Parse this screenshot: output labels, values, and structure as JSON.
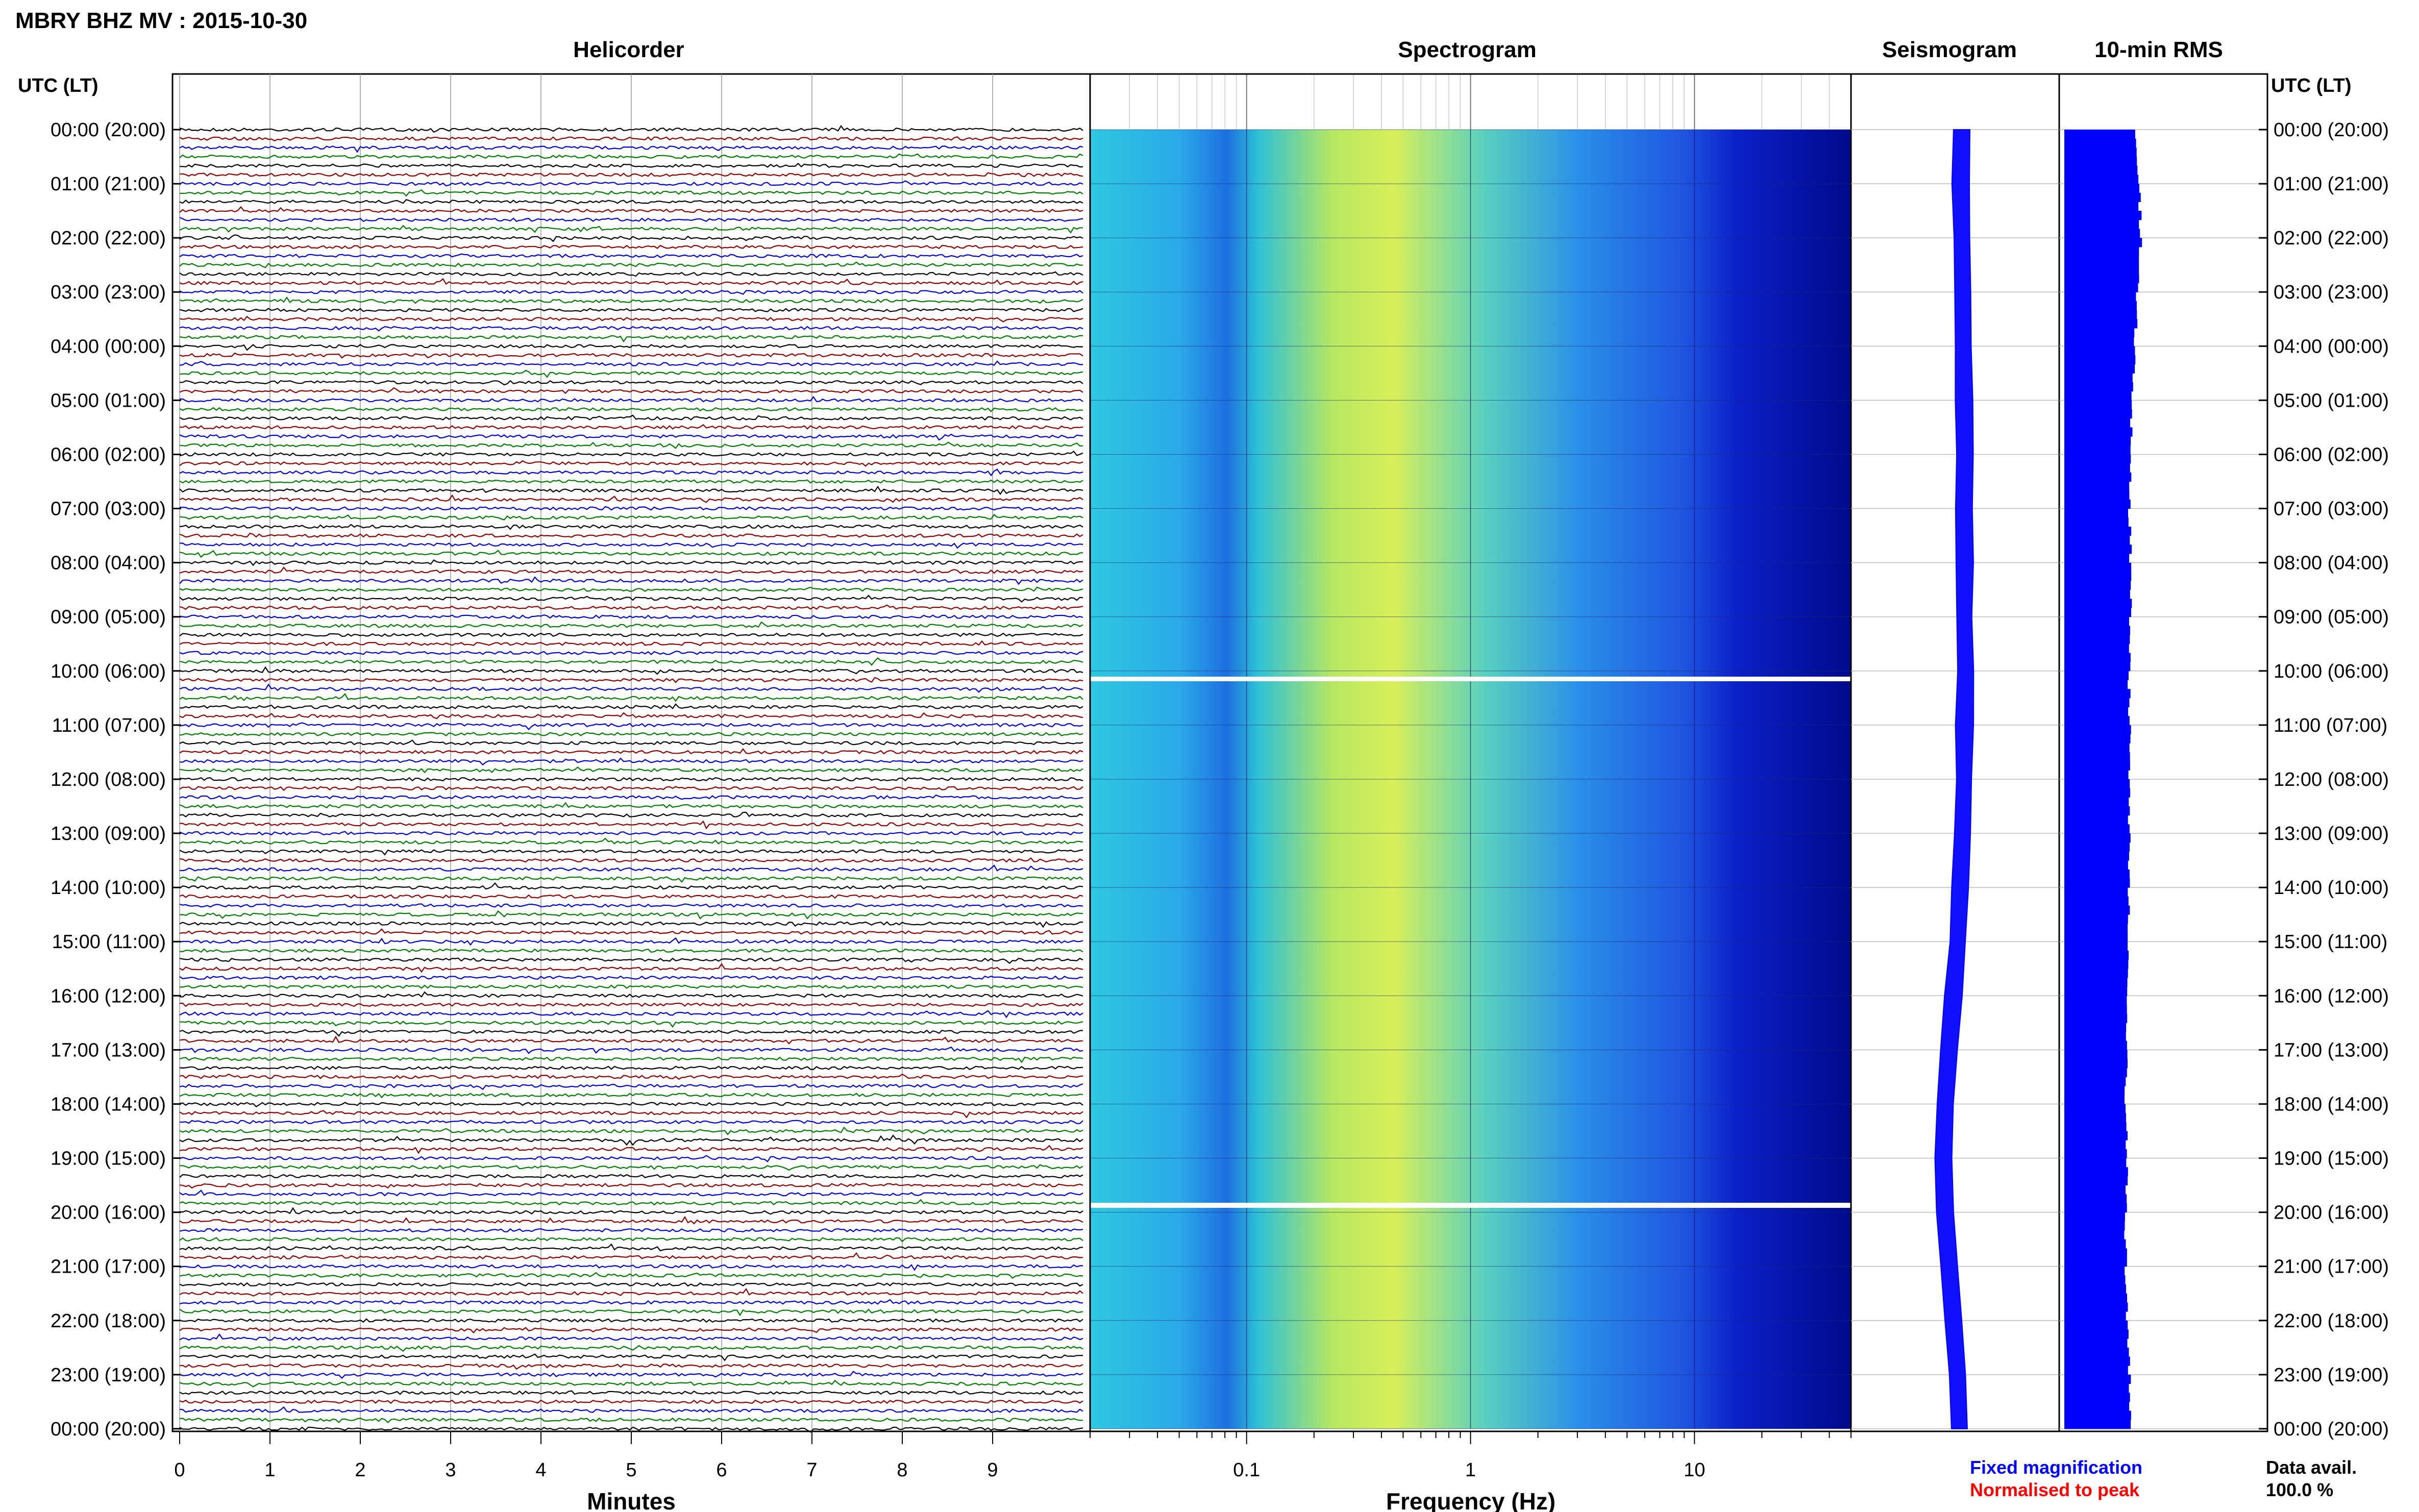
{
  "page_title": "MBRY BHZ MV : 2015-10-30",
  "panels": {
    "helicorder": "Helicorder",
    "spectrogram": "Spectrogram",
    "seismogram": "Seismogram",
    "rms": "10-min RMS"
  },
  "axis_header_left": "UTC (LT)",
  "axis_header_right": "UTC (LT)",
  "hour_labels": [
    "00:00 (20:00)",
    "01:00 (21:00)",
    "02:00 (22:00)",
    "03:00 (23:00)",
    "04:00 (00:00)",
    "05:00 (01:00)",
    "06:00 (02:00)",
    "07:00 (03:00)",
    "08:00 (04:00)",
    "09:00 (05:00)",
    "10:00 (06:00)",
    "11:00 (07:00)",
    "12:00 (08:00)",
    "13:00 (09:00)",
    "14:00 (10:00)",
    "15:00 (11:00)",
    "16:00 (12:00)",
    "17:00 (13:00)",
    "18:00 (14:00)",
    "19:00 (15:00)",
    "20:00 (16:00)",
    "21:00 (17:00)",
    "22:00 (18:00)",
    "23:00 (19:00)",
    "00:00 (20:00)"
  ],
  "minutes_axis": {
    "label": "Minutes",
    "ticks": [
      "0",
      "1",
      "2",
      "3",
      "4",
      "5",
      "6",
      "7",
      "8",
      "9"
    ]
  },
  "frequency_axis": {
    "label": "Frequency (Hz)",
    "ticks": [
      "0.1",
      "1",
      "10"
    ],
    "scale": "log"
  },
  "legend": {
    "fixed": "Fixed magnification",
    "normalised": "Normalised to peak"
  },
  "data_avail": {
    "label": "Data avail.",
    "value": "100.0 %"
  },
  "colors": {
    "trace_cycle": [
      "#000000",
      "#8b0000",
      "#0000cc",
      "#007a00"
    ],
    "fixed_magnification": "#0000ff",
    "normalised_to_peak": "#ff0000",
    "rms_bar": "#0000ff",
    "spectrogram_low": "#00008b",
    "spectrogram_high": "#ffff00"
  },
  "chart_data": {
    "type": "heatmap",
    "title": "MBRY BHZ MV : 2015-10-30",
    "y_axis": {
      "label": "UTC (LT)",
      "range": [
        "00:00",
        "24:00"
      ]
    },
    "helicorder": {
      "x_range_minutes": [
        0,
        10
      ],
      "rows_per_hour": 6,
      "trace_colors_cycle": [
        "black",
        "dark red",
        "blue",
        "green"
      ]
    },
    "spectrogram": {
      "x_scale": "log",
      "x_range_hz": [
        0.02,
        50
      ],
      "gaps_at_utc": [
        "10:00",
        "19:50"
      ]
    },
    "seismogram": {
      "centre_offset_by_hour": [
        0.1,
        0.1,
        0.12,
        0.12,
        0.14,
        0.14,
        0.15,
        0.15,
        0.15,
        0.15,
        0.16,
        0.15,
        0.14,
        0.12,
        0.1,
        0.06,
        0.0,
        -0.05,
        -0.1,
        -0.12,
        -0.1,
        -0.05,
        0.0,
        0.05,
        0.08
      ]
    },
    "rms_relative_by_hour": [
      0.92,
      0.98,
      1.0,
      0.95,
      0.92,
      0.88,
      0.86,
      0.85,
      0.87,
      0.86,
      0.84,
      0.86,
      0.85,
      0.85,
      0.84,
      0.83,
      0.82,
      0.82,
      0.8,
      0.82,
      0.8,
      0.8,
      0.82,
      0.85,
      0.88
    ]
  }
}
